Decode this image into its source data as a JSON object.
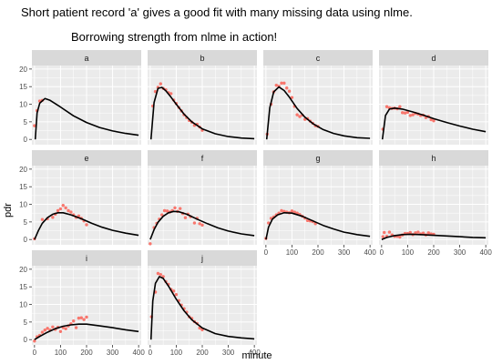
{
  "caption": "Short patient record 'a' gives a good fit with many missing data using nlme.",
  "chart_data": {
    "type": "scatter",
    "title": "Borrowing strength from nlme in action!",
    "xlabel": "minute",
    "ylabel": "pdr",
    "xlim": [
      -10,
      410
    ],
    "ylim": [
      -1.5,
      21
    ],
    "xticks": [
      0,
      100,
      200,
      300,
      400
    ],
    "yticks": [
      0,
      5,
      10,
      15,
      20
    ],
    "grid": true,
    "point_color": "#F8766D",
    "line_color": "#000000",
    "panel_bg": "#EBEBEB",
    "strip_bg": "#D9D9D9",
    "panels": [
      {
        "label": "a",
        "points": [
          [
            0,
            3.9
          ],
          [
            10,
            8.2
          ],
          [
            20,
            10.9
          ],
          [
            30,
            11.1
          ]
        ],
        "fit": [
          [
            3,
            0
          ],
          [
            10,
            7.5
          ],
          [
            20,
            10.3
          ],
          [
            40,
            11.6
          ],
          [
            60,
            11.1
          ],
          [
            100,
            9.2
          ],
          [
            150,
            6.7
          ],
          [
            200,
            4.8
          ],
          [
            250,
            3.4
          ],
          [
            300,
            2.4
          ],
          [
            350,
            1.7
          ],
          [
            400,
            1.2
          ]
        ]
      },
      {
        "label": "b",
        "points": [
          [
            10,
            9.5
          ],
          [
            20,
            13.6
          ],
          [
            30,
            14.8
          ],
          [
            40,
            15.8
          ],
          [
            50,
            14.5
          ],
          [
            60,
            14.1
          ],
          [
            70,
            13.3
          ],
          [
            80,
            13.0
          ],
          [
            90,
            11.2
          ],
          [
            100,
            10.2
          ],
          [
            110,
            9.1
          ],
          [
            120,
            8.1
          ],
          [
            130,
            7.0
          ],
          [
            140,
            6.2
          ],
          [
            150,
            5.4
          ],
          [
            160,
            4.9
          ],
          [
            170,
            4.0
          ],
          [
            180,
            4.3
          ],
          [
            190,
            3.5
          ],
          [
            200,
            2.6
          ]
        ],
        "fit": [
          [
            3,
            0
          ],
          [
            15,
            10.5
          ],
          [
            30,
            14.5
          ],
          [
            45,
            14.8
          ],
          [
            60,
            13.8
          ],
          [
            80,
            12.0
          ],
          [
            100,
            10.0
          ],
          [
            130,
            7.2
          ],
          [
            160,
            5.0
          ],
          [
            200,
            3.0
          ],
          [
            250,
            1.6
          ],
          [
            300,
            0.8
          ],
          [
            350,
            0.4
          ],
          [
            400,
            0.2
          ]
        ]
      },
      {
        "label": "c",
        "points": [
          [
            5,
            1.5
          ],
          [
            20,
            10.0
          ],
          [
            30,
            13.5
          ],
          [
            40,
            15.4
          ],
          [
            50,
            15.1
          ],
          [
            60,
            16.0
          ],
          [
            70,
            16.0
          ],
          [
            80,
            14.6
          ],
          [
            90,
            13.7
          ],
          [
            100,
            11.9
          ],
          [
            110,
            9.4
          ],
          [
            120,
            7.0
          ],
          [
            130,
            6.5
          ],
          [
            140,
            6.9
          ],
          [
            150,
            5.7
          ],
          [
            160,
            5.9
          ],
          [
            170,
            5.2
          ],
          [
            180,
            4.6
          ],
          [
            190,
            3.9
          ],
          [
            200,
            3.7
          ]
        ],
        "fit": [
          [
            3,
            0
          ],
          [
            15,
            9.0
          ],
          [
            30,
            13.5
          ],
          [
            50,
            14.9
          ],
          [
            70,
            13.9
          ],
          [
            90,
            12.0
          ],
          [
            120,
            8.8
          ],
          [
            150,
            6.3
          ],
          [
            180,
            4.5
          ],
          [
            220,
            2.8
          ],
          [
            260,
            1.7
          ],
          [
            300,
            1.0
          ],
          [
            350,
            0.5
          ],
          [
            400,
            0.3
          ]
        ]
      },
      {
        "label": "d",
        "points": [
          [
            5,
            2.9
          ],
          [
            20,
            9.3
          ],
          [
            30,
            9.0
          ],
          [
            40,
            8.8
          ],
          [
            50,
            8.9
          ],
          [
            60,
            8.7
          ],
          [
            70,
            9.3
          ],
          [
            80,
            7.6
          ],
          [
            90,
            7.5
          ],
          [
            100,
            7.7
          ],
          [
            110,
            6.8
          ],
          [
            120,
            7.0
          ],
          [
            130,
            7.4
          ],
          [
            140,
            7.2
          ],
          [
            150,
            6.8
          ],
          [
            160,
            6.9
          ],
          [
            170,
            6.2
          ],
          [
            180,
            6.5
          ],
          [
            190,
            5.6
          ],
          [
            200,
            5.3
          ]
        ],
        "fit": [
          [
            3,
            0
          ],
          [
            15,
            6.8
          ],
          [
            30,
            8.6
          ],
          [
            50,
            8.9
          ],
          [
            80,
            8.6
          ],
          [
            120,
            7.8
          ],
          [
            160,
            6.9
          ],
          [
            200,
            5.9
          ],
          [
            250,
            4.8
          ],
          [
            300,
            3.8
          ],
          [
            350,
            2.9
          ],
          [
            400,
            2.2
          ]
        ]
      },
      {
        "label": "e",
        "points": [
          [
            0,
            0.2
          ],
          [
            30,
            5.7
          ],
          [
            50,
            5.9
          ],
          [
            70,
            6.3
          ],
          [
            80,
            7.2
          ],
          [
            90,
            8.2
          ],
          [
            100,
            8.7
          ],
          [
            110,
            9.7
          ],
          [
            120,
            9.0
          ],
          [
            130,
            8.2
          ],
          [
            140,
            7.8
          ],
          [
            150,
            7.0
          ],
          [
            160,
            6.3
          ],
          [
            170,
            6.7
          ],
          [
            180,
            6.0
          ],
          [
            190,
            5.3
          ],
          [
            200,
            4.2
          ]
        ],
        "fit": [
          [
            0,
            0
          ],
          [
            15,
            2.5
          ],
          [
            30,
            4.6
          ],
          [
            50,
            6.2
          ],
          [
            70,
            7.2
          ],
          [
            90,
            7.6
          ],
          [
            110,
            7.6
          ],
          [
            140,
            7.0
          ],
          [
            180,
            5.9
          ],
          [
            220,
            4.6
          ],
          [
            260,
            3.5
          ],
          [
            300,
            2.6
          ],
          [
            350,
            1.8
          ],
          [
            400,
            1.2
          ]
        ]
      },
      {
        "label": "f",
        "points": [
          [
            0,
            -1.2
          ],
          [
            15,
            3.4
          ],
          [
            25,
            4.6
          ],
          [
            35,
            5.8
          ],
          [
            45,
            7.0
          ],
          [
            55,
            8.2
          ],
          [
            65,
            8.1
          ],
          [
            75,
            7.8
          ],
          [
            85,
            8.2
          ],
          [
            95,
            9.0
          ],
          [
            105,
            8.0
          ],
          [
            115,
            8.8
          ],
          [
            125,
            7.4
          ],
          [
            135,
            6.2
          ],
          [
            145,
            7.2
          ],
          [
            155,
            6.5
          ],
          [
            170,
            4.7
          ],
          [
            180,
            6.0
          ],
          [
            190,
            4.5
          ],
          [
            200,
            4.1
          ]
        ],
        "fit": [
          [
            0,
            0
          ],
          [
            15,
            2.8
          ],
          [
            30,
            4.9
          ],
          [
            50,
            6.6
          ],
          [
            70,
            7.6
          ],
          [
            90,
            8.0
          ],
          [
            110,
            7.9
          ],
          [
            140,
            7.2
          ],
          [
            180,
            5.8
          ],
          [
            220,
            4.5
          ],
          [
            260,
            3.3
          ],
          [
            300,
            2.4
          ],
          [
            350,
            1.6
          ],
          [
            400,
            1.1
          ]
        ]
      },
      {
        "label": "g",
        "points": [
          [
            0,
            0.3
          ],
          [
            10,
            4.7
          ],
          [
            20,
            6.0
          ],
          [
            30,
            6.4
          ],
          [
            40,
            7.0
          ],
          [
            50,
            7.5
          ],
          [
            60,
            8.2
          ],
          [
            70,
            8.0
          ],
          [
            80,
            7.8
          ],
          [
            90,
            7.6
          ],
          [
            100,
            8.1
          ],
          [
            110,
            7.8
          ],
          [
            120,
            7.5
          ],
          [
            130,
            7.1
          ],
          [
            140,
            6.6
          ],
          [
            150,
            6.1
          ],
          [
            160,
            5.4
          ],
          [
            170,
            5.3
          ],
          [
            180,
            5.1
          ],
          [
            190,
            4.5
          ]
        ],
        "fit": [
          [
            0,
            0
          ],
          [
            10,
            3.5
          ],
          [
            25,
            5.8
          ],
          [
            45,
            7.0
          ],
          [
            70,
            7.6
          ],
          [
            100,
            7.5
          ],
          [
            140,
            6.6
          ],
          [
            180,
            5.3
          ],
          [
            220,
            4.0
          ],
          [
            260,
            3.0
          ],
          [
            300,
            2.1
          ],
          [
            350,
            1.4
          ],
          [
            400,
            0.9
          ]
        ]
      },
      {
        "label": "h",
        "points": [
          [
            5,
            0.8
          ],
          [
            10,
            2.0
          ],
          [
            20,
            0.9
          ],
          [
            30,
            2.1
          ],
          [
            40,
            1.3
          ],
          [
            50,
            0.9
          ],
          [
            60,
            0.9
          ],
          [
            70,
            0.7
          ],
          [
            80,
            1.3
          ],
          [
            90,
            1.7
          ],
          [
            100,
            1.7
          ],
          [
            110,
            2.0
          ],
          [
            120,
            1.4
          ],
          [
            130,
            1.9
          ],
          [
            140,
            2.1
          ],
          [
            150,
            1.6
          ],
          [
            160,
            1.8
          ],
          [
            170,
            1.3
          ],
          [
            180,
            1.9
          ],
          [
            190,
            1.6
          ],
          [
            200,
            1.5
          ]
        ],
        "fit": [
          [
            0,
            0
          ],
          [
            20,
            0.6
          ],
          [
            50,
            1.1
          ],
          [
            80,
            1.4
          ],
          [
            110,
            1.5
          ],
          [
            150,
            1.4
          ],
          [
            200,
            1.2
          ],
          [
            250,
            1.0
          ],
          [
            300,
            0.8
          ],
          [
            350,
            0.6
          ],
          [
            400,
            0.5
          ]
        ]
      },
      {
        "label": "i",
        "points": [
          [
            0,
            -0.4
          ],
          [
            10,
            0.8
          ],
          [
            20,
            1.2
          ],
          [
            30,
            2.1
          ],
          [
            40,
            2.7
          ],
          [
            50,
            3.2
          ],
          [
            60,
            2.7
          ],
          [
            70,
            3.6
          ],
          [
            80,
            2.9
          ],
          [
            90,
            3.5
          ],
          [
            100,
            2.3
          ],
          [
            110,
            3.4
          ],
          [
            120,
            3.1
          ],
          [
            130,
            3.9
          ],
          [
            140,
            4.5
          ],
          [
            150,
            5.3
          ],
          [
            160,
            3.4
          ],
          [
            170,
            6.1
          ],
          [
            180,
            6.2
          ],
          [
            190,
            5.7
          ],
          [
            200,
            6.4
          ]
        ],
        "fit": [
          [
            0,
            0
          ],
          [
            20,
            0.9
          ],
          [
            50,
            2.1
          ],
          [
            80,
            3.1
          ],
          [
            110,
            3.8
          ],
          [
            140,
            4.2
          ],
          [
            170,
            4.4
          ],
          [
            200,
            4.4
          ],
          [
            250,
            3.9
          ],
          [
            300,
            3.4
          ],
          [
            350,
            2.8
          ],
          [
            400,
            2.3
          ]
        ]
      },
      {
        "label": "j",
        "points": [
          [
            5,
            6.5
          ],
          [
            20,
            13.5
          ],
          [
            30,
            18.8
          ],
          [
            40,
            18.5
          ],
          [
            50,
            17.9
          ],
          [
            60,
            16.5
          ],
          [
            70,
            15.7
          ],
          [
            80,
            14.3
          ],
          [
            90,
            13.8
          ],
          [
            100,
            12.8
          ],
          [
            110,
            11.1
          ],
          [
            120,
            9.8
          ],
          [
            130,
            8.8
          ],
          [
            140,
            7.8
          ],
          [
            150,
            6.5
          ],
          [
            160,
            6.0
          ],
          [
            170,
            5.1
          ],
          [
            180,
            4.6
          ],
          [
            190,
            3.3
          ],
          [
            200,
            2.8
          ]
        ],
        "fit": [
          [
            3,
            0
          ],
          [
            10,
            11.0
          ],
          [
            20,
            16.0
          ],
          [
            35,
            17.9
          ],
          [
            50,
            17.4
          ],
          [
            70,
            15.2
          ],
          [
            100,
            11.5
          ],
          [
            130,
            8.2
          ],
          [
            160,
            5.6
          ],
          [
            200,
            3.3
          ],
          [
            250,
            1.7
          ],
          [
            300,
            0.9
          ],
          [
            350,
            0.5
          ],
          [
            400,
            0.2
          ]
        ]
      }
    ]
  }
}
